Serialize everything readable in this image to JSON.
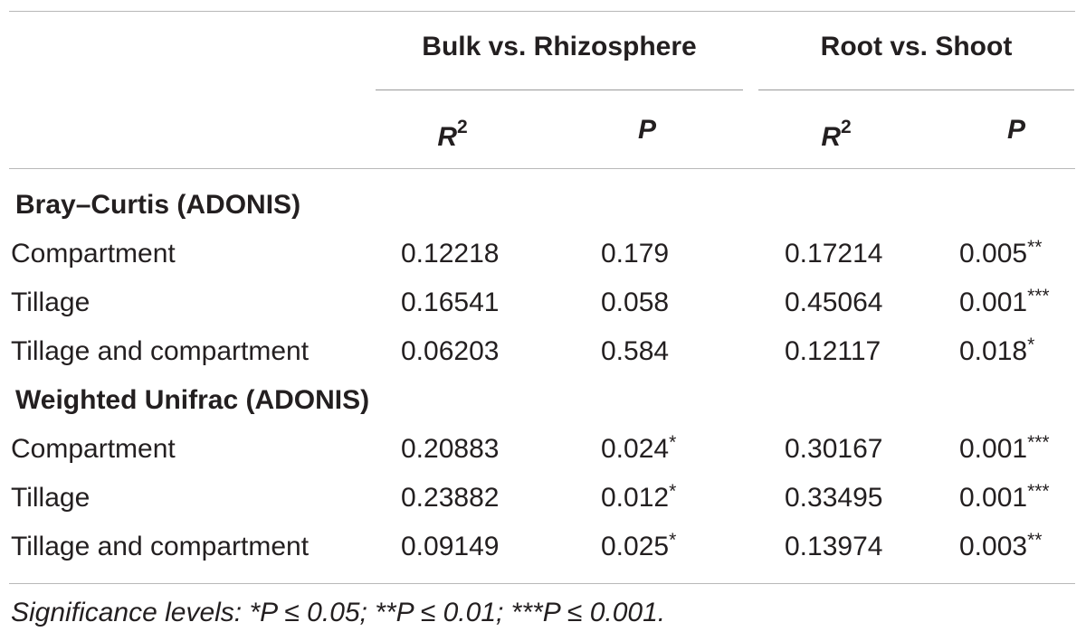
{
  "header": {
    "group1": "Bulk vs. Rhizosphere",
    "group2": "Root vs. Shoot",
    "r_label": "R",
    "r_sup": "2",
    "p_label": "P"
  },
  "sections": [
    {
      "title": "Bray–Curtis (ADONIS)",
      "rows": [
        {
          "label": "Compartment",
          "r2_1": "0.12218",
          "p_1": "0.179",
          "p_1_sig": "",
          "r2_2": "0.17214",
          "p_2": "0.005",
          "p_2_sig": "**"
        },
        {
          "label": "Tillage",
          "r2_1": "0.16541",
          "p_1": "0.058",
          "p_1_sig": "",
          "r2_2": "0.45064",
          "p_2": "0.001",
          "p_2_sig": "***"
        },
        {
          "label": "Tillage and compartment",
          "r2_1": "0.06203",
          "p_1": "0.584",
          "p_1_sig": "",
          "r2_2": "0.12117",
          "p_2": "0.018",
          "p_2_sig": "*"
        }
      ]
    },
    {
      "title": "Weighted Unifrac (ADONIS)",
      "rows": [
        {
          "label": "Compartment",
          "r2_1": "0.20883",
          "p_1": "0.024",
          "p_1_sig": "*",
          "r2_2": "0.30167",
          "p_2": "0.001",
          "p_2_sig": "***"
        },
        {
          "label": "Tillage",
          "r2_1": "0.23882",
          "p_1": "0.012",
          "p_1_sig": "*",
          "r2_2": "0.33495",
          "p_2": "0.001",
          "p_2_sig": "***"
        },
        {
          "label": "Tillage and compartment",
          "r2_1": "0.09149",
          "p_1": "0.025",
          "p_1_sig": "*",
          "r2_2": "0.13974",
          "p_2": "0.003",
          "p_2_sig": "**"
        }
      ]
    }
  ],
  "footnote": "Significance levels: *P ≤ 0.05; **P ≤ 0.01; ***P ≤ 0.001."
}
